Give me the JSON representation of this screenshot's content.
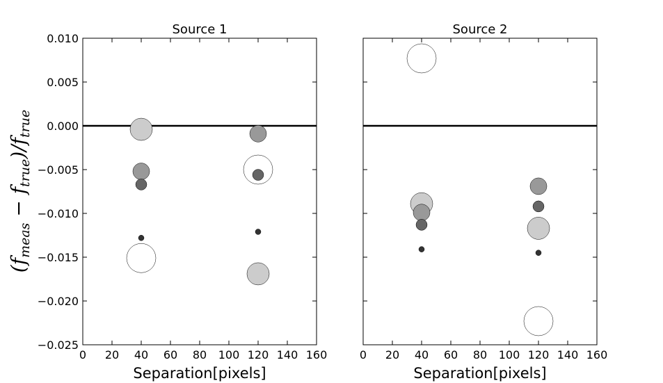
{
  "chart_data": {
    "type": "scatter",
    "ylabel_main": "(f",
    "ylabel_sub1": "meas",
    "ylabel_mid": " − f",
    "ylabel_sub2": "true",
    "ylabel_mid2": ")/f",
    "ylabel_sub3": "true",
    "ylim": [
      -0.025,
      0.01
    ],
    "xlim": [
      0,
      160
    ],
    "yticks": [
      "0.010",
      "0.005",
      "0.000",
      "−0.005",
      "−0.010",
      "−0.015",
      "−0.020",
      "−0.025"
    ],
    "ytick_values": [
      0.01,
      0.005,
      0.0,
      -0.005,
      -0.01,
      -0.015,
      -0.02,
      -0.025
    ],
    "xticks": [
      "0",
      "20",
      "40",
      "60",
      "80",
      "100",
      "120",
      "140",
      "160"
    ],
    "xtick_values": [
      0,
      20,
      40,
      60,
      80,
      100,
      120,
      140,
      160
    ],
    "reference_line_y": 0.0,
    "panels": [
      {
        "title": "Source 1",
        "xlabel": "Separation[pixels]",
        "points": [
          {
            "x": 40,
            "y": -0.0004,
            "size": 4,
            "color": "#cccccc"
          },
          {
            "x": 40,
            "y": -0.0052,
            "size": 3,
            "color": "#999999"
          },
          {
            "x": 40,
            "y": -0.0067,
            "size": 2,
            "color": "#666666"
          },
          {
            "x": 40,
            "y": -0.0128,
            "size": 1,
            "color": "#333333"
          },
          {
            "x": 40,
            "y": -0.0151,
            "size": 5,
            "color": "#ffffff"
          },
          {
            "x": 120,
            "y": -0.0009,
            "size": 3,
            "color": "#999999"
          },
          {
            "x": 120,
            "y": -0.005,
            "size": 5,
            "color": "#ffffff"
          },
          {
            "x": 120,
            "y": -0.0056,
            "size": 2,
            "color": "#666666"
          },
          {
            "x": 120,
            "y": -0.0121,
            "size": 1,
            "color": "#333333"
          },
          {
            "x": 120,
            "y": -0.0169,
            "size": 4,
            "color": "#cccccc"
          }
        ]
      },
      {
        "title": "Source 2",
        "xlabel": "Separation[pixels]",
        "points": [
          {
            "x": 40,
            "y": 0.0077,
            "size": 5,
            "color": "#ffffff"
          },
          {
            "x": 40,
            "y": -0.0089,
            "size": 4,
            "color": "#cccccc"
          },
          {
            "x": 40,
            "y": -0.0099,
            "size": 3,
            "color": "#999999"
          },
          {
            "x": 40,
            "y": -0.0113,
            "size": 2,
            "color": "#666666"
          },
          {
            "x": 40,
            "y": -0.0141,
            "size": 1,
            "color": "#333333"
          },
          {
            "x": 120,
            "y": -0.0069,
            "size": 3,
            "color": "#999999"
          },
          {
            "x": 120,
            "y": -0.0092,
            "size": 2,
            "color": "#666666"
          },
          {
            "x": 120,
            "y": -0.0117,
            "size": 4,
            "color": "#cccccc"
          },
          {
            "x": 120,
            "y": -0.0145,
            "size": 1,
            "color": "#333333"
          },
          {
            "x": 120,
            "y": -0.0223,
            "size": 5,
            "color": "#ffffff"
          }
        ]
      }
    ]
  }
}
